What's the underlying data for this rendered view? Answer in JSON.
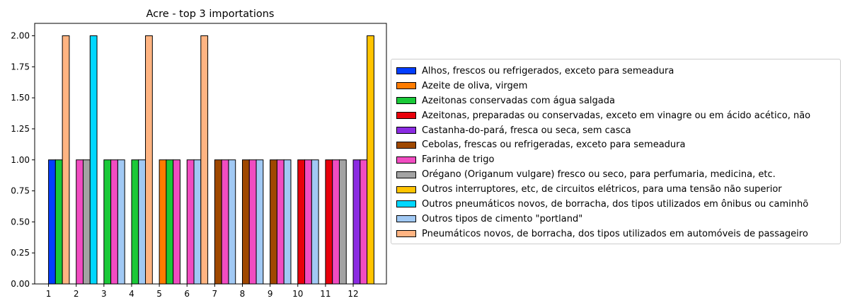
{
  "chart_data": {
    "type": "bar",
    "title": "Acre - top 3 importations",
    "xlabel": "",
    "ylabel": "",
    "x_ticks": [
      "1",
      "2",
      "3",
      "4",
      "5",
      "6",
      "7",
      "8",
      "9",
      "10",
      "11",
      "12"
    ],
    "xlim": [
      0.5,
      13.2
    ],
    "ylim": [
      0,
      2.1
    ],
    "y_ticks": [
      "0.00",
      "0.25",
      "0.50",
      "0.75",
      "1.00",
      "1.25",
      "1.50",
      "1.75",
      "2.00"
    ],
    "legend_position": "right",
    "series": [
      {
        "name": "Alhos, frescos ou refrigerados, exceto para semeadura",
        "color": "#023eff",
        "values": [
          1,
          0,
          0,
          0,
          0,
          0,
          0,
          0,
          0,
          0,
          0,
          0
        ]
      },
      {
        "name": "Azeite de oliva, virgem",
        "color": "#ff7c00",
        "values": [
          0,
          0,
          0,
          0,
          1,
          0,
          0,
          0,
          0,
          0,
          0,
          0
        ]
      },
      {
        "name": "Azeitonas conservadas com água salgada",
        "color": "#1ac938",
        "values": [
          1,
          0,
          1,
          1,
          1,
          0,
          0,
          0,
          0,
          0,
          0,
          0
        ]
      },
      {
        "name": "Azeitonas, preparadas ou conservadas, exceto em vinagre ou em ácido acético, não",
        "color": "#e8000b",
        "values": [
          0,
          0,
          0,
          0,
          0,
          0,
          0,
          0,
          0,
          1,
          1,
          0
        ]
      },
      {
        "name": "Castanha-do-pará, fresca ou seca, sem casca",
        "color": "#8b2be2",
        "values": [
          0,
          0,
          0,
          0,
          0,
          0,
          0,
          0,
          0,
          0,
          0,
          1
        ]
      },
      {
        "name": "Cebolas, frescas ou refrigeradas, exceto para semeadura",
        "color": "#9f4800",
        "values": [
          0,
          0,
          0,
          0,
          0,
          0,
          1,
          1,
          1,
          0,
          0,
          0
        ]
      },
      {
        "name": "Farinha de trigo",
        "color": "#f14cc1",
        "values": [
          0,
          1,
          1,
          0,
          1,
          1,
          1,
          1,
          1,
          1,
          1,
          1
        ]
      },
      {
        "name": "Orégano (Origanum vulgare) fresco ou seco, para perfumaria, medicina, etc.",
        "color": "#a3a3a3",
        "values": [
          0,
          1,
          0,
          0,
          0,
          0,
          0,
          0,
          0,
          0,
          1,
          0
        ]
      },
      {
        "name": "Outros interruptores, etc, de circuitos elétricos, para uma tensão não superior",
        "color": "#ffc400",
        "values": [
          0,
          0,
          0,
          0,
          0,
          0,
          0,
          0,
          0,
          0,
          0,
          2
        ]
      },
      {
        "name": "Outros pneumáticos novos, de borracha, dos tipos utilizados em ônibus ou caminhõ",
        "color": "#00d7ff",
        "values": [
          0,
          2,
          0,
          0,
          0,
          0,
          0,
          0,
          0,
          0,
          0,
          0
        ]
      },
      {
        "name": "Outros tipos de cimento \"portland\"",
        "color": "#a1c9f4",
        "values": [
          0,
          0,
          1,
          1,
          0,
          1,
          1,
          1,
          1,
          1,
          0,
          0
        ]
      },
      {
        "name": "Pneumáticos novos, de borracha, dos tipos utilizados em automóveis de passageiro",
        "color": "#ffb482",
        "values": [
          2,
          0,
          0,
          2,
          0,
          2,
          0,
          0,
          0,
          0,
          0,
          0
        ]
      }
    ]
  }
}
